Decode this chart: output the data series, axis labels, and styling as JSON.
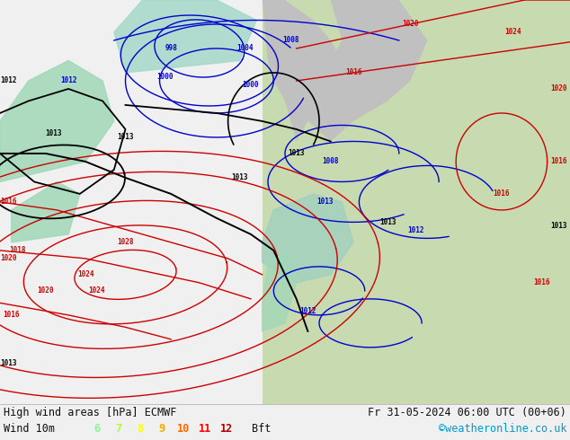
{
  "title_left": "High wind areas [hPa] ECMWF",
  "title_right": "Fr 31-05-2024 06:00 UTC (00+06)",
  "subtitle_left": "Wind 10m",
  "bft_label": "Bft",
  "bft_numbers": [
    "6",
    "7",
    "8",
    "9",
    "10",
    "11",
    "12"
  ],
  "bft_colors": [
    "#90ee90",
    "#adff2f",
    "#ffff00",
    "#ffa500",
    "#ff6600",
    "#ff0000",
    "#aa0000"
  ],
  "copyright": "©weatheronline.co.uk",
  "bottom_bar_color": "#f0f0f0",
  "text_color": "#111111",
  "legend_font_size": 8.5,
  "title_font_size": 8.5,
  "fig_width": 6.34,
  "fig_height": 4.9,
  "dpi": 100,
  "map_ocean_color": "#d8d8d8",
  "map_land_color": "#c8dbb0",
  "map_sea_color": "#c8c8c8",
  "wind_area_colors": [
    "#b0e8c0",
    "#80d8a0"
  ],
  "isobar_blue": "#0000cc",
  "isobar_red": "#cc0000",
  "isobar_black": "#000000",
  "label_fontsize": 5.5
}
